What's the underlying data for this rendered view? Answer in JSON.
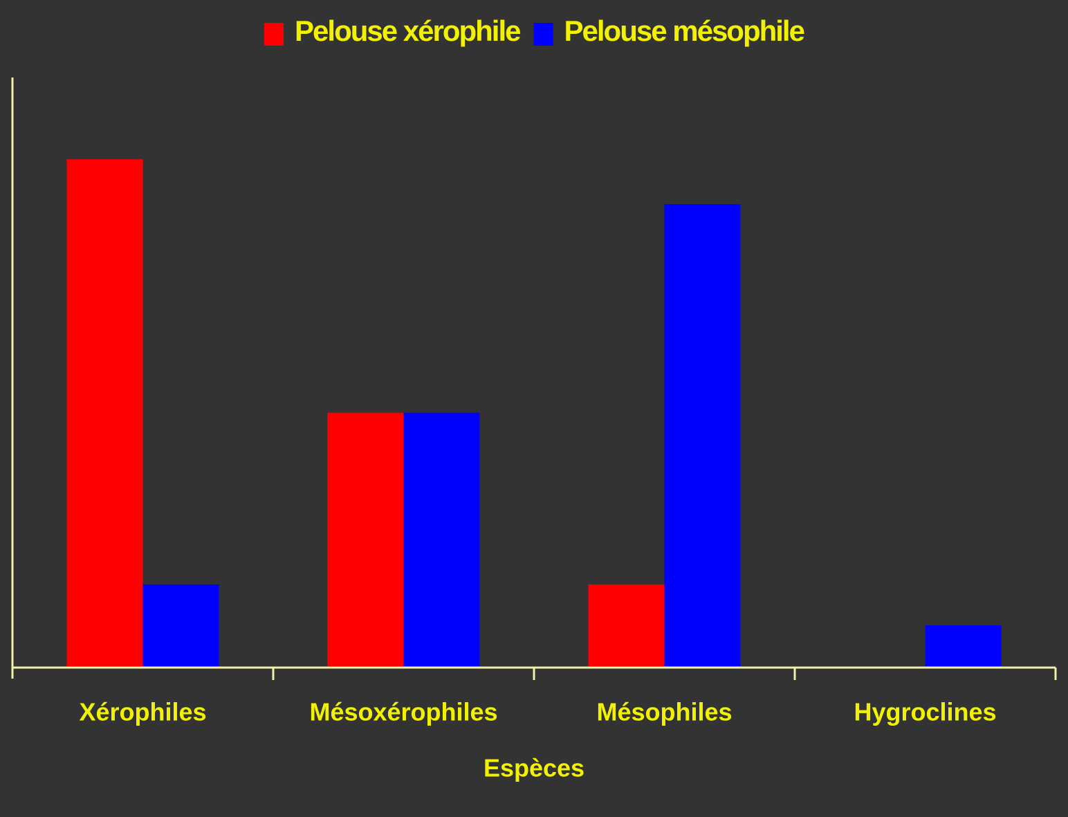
{
  "chart_data": {
    "type": "bar",
    "x_label": "Espèces",
    "categories": [
      "Xérophiles",
      "Mésoxérophiles",
      "Mésophiles",
      "Hygroclines"
    ],
    "series": [
      {
        "name": "Pelouse xérophile",
        "color": "#ff0000",
        "values": [
          12.4,
          6.2,
          2,
          0
        ]
      },
      {
        "name": "Pelouse mésophile",
        "color": "#0000ff",
        "values": [
          2,
          6.2,
          11.3,
          1
        ]
      }
    ],
    "ylim": [
      0,
      14.4
    ],
    "legend": "top"
  }
}
